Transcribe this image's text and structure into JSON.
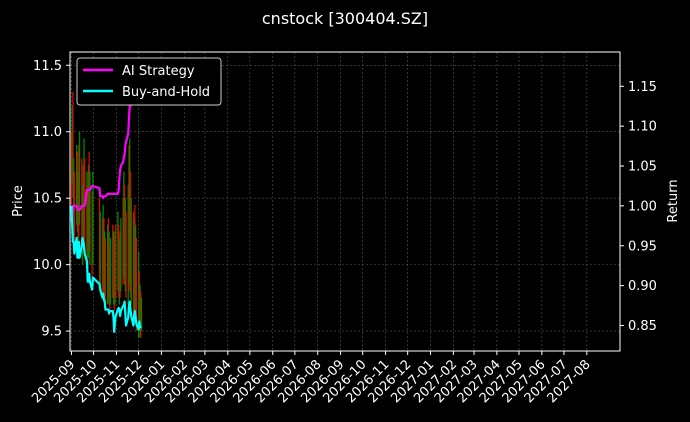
{
  "chart_data": {
    "type": "line",
    "title": "cnstock [300404.SZ]",
    "ylabel_left": "Price",
    "ylabel_right": "Return",
    "xlim": [
      "2025-08-30",
      "2027-09-15"
    ],
    "ylim_left": [
      9.35,
      11.6
    ],
    "ylim_right": [
      0.818,
      1.193
    ],
    "x_ticks": [
      "2025-09",
      "2025-10",
      "2025-11",
      "2025-12",
      "2026-01",
      "2026-02",
      "2026-03",
      "2026-04",
      "2026-05",
      "2026-06",
      "2026-07",
      "2026-08",
      "2026-09",
      "2026-10",
      "2026-11",
      "2026-12",
      "2027-01",
      "2027-02",
      "2027-03",
      "2027-04",
      "2027-05",
      "2027-06",
      "2027-07",
      "2027-08"
    ],
    "y_ticks_left": [
      9.5,
      10.0,
      10.5,
      11.0,
      11.5
    ],
    "y_ticks_right": [
      0.85,
      0.9,
      0.95,
      1.0,
      1.05,
      1.1,
      1.15
    ],
    "grid": true,
    "legend_position": "top-left",
    "colors": {
      "background": "#000000",
      "ai": "#ff00ff",
      "bh": "#00ffff",
      "up": "#008800",
      "down": "#cc1100",
      "grid": "#555555"
    },
    "price_bars": [
      {
        "x": "2025-09-01",
        "low": 10.45,
        "high": 11.0
      },
      {
        "x": "2025-09-02",
        "low": 10.6,
        "high": 11.2
      },
      {
        "x": "2025-09-03",
        "low": 10.5,
        "high": 11.3
      },
      {
        "x": "2025-09-04",
        "low": 10.2,
        "high": 10.8
      },
      {
        "x": "2025-09-05",
        "low": 10.1,
        "high": 10.7
      },
      {
        "x": "2025-09-08",
        "low": 10.3,
        "high": 10.9
      },
      {
        "x": "2025-09-09",
        "low": 10.25,
        "high": 10.85
      },
      {
        "x": "2025-09-10",
        "low": 10.1,
        "high": 10.7
      },
      {
        "x": "2025-09-11",
        "low": 10.2,
        "high": 10.9
      },
      {
        "x": "2025-09-12",
        "low": 10.3,
        "high": 11.0
      },
      {
        "x": "2025-09-15",
        "low": 10.15,
        "high": 10.8
      },
      {
        "x": "2025-09-16",
        "low": 10.0,
        "high": 10.6
      },
      {
        "x": "2025-09-17",
        "low": 10.1,
        "high": 10.75
      },
      {
        "x": "2025-09-18",
        "low": 10.2,
        "high": 10.95
      },
      {
        "x": "2025-09-19",
        "low": 10.1,
        "high": 10.8
      },
      {
        "x": "2025-09-22",
        "low": 10.0,
        "high": 10.7
      },
      {
        "x": "2025-09-23",
        "low": 9.95,
        "high": 10.6
      },
      {
        "x": "2025-09-24",
        "low": 10.05,
        "high": 10.75
      },
      {
        "x": "2025-09-25",
        "low": 10.1,
        "high": 10.85
      },
      {
        "x": "2025-09-26",
        "low": 10.0,
        "high": 10.7
      },
      {
        "x": "2025-09-29",
        "low": 9.9,
        "high": 10.55
      },
      {
        "x": "2025-09-30",
        "low": 10.0,
        "high": 10.7
      },
      {
        "x": "2025-10-09",
        "low": 9.85,
        "high": 10.5
      },
      {
        "x": "2025-10-10",
        "low": 9.8,
        "high": 10.4
      },
      {
        "x": "2025-10-13",
        "low": 9.75,
        "high": 10.35
      },
      {
        "x": "2025-10-14",
        "low": 9.8,
        "high": 10.45
      },
      {
        "x": "2025-10-15",
        "low": 9.75,
        "high": 10.35
      },
      {
        "x": "2025-10-16",
        "low": 9.7,
        "high": 10.25
      },
      {
        "x": "2025-10-17",
        "low": 9.65,
        "high": 10.2
      },
      {
        "x": "2025-10-20",
        "low": 9.7,
        "high": 10.3
      },
      {
        "x": "2025-10-21",
        "low": 9.75,
        "high": 10.35
      },
      {
        "x": "2025-10-22",
        "low": 9.7,
        "high": 10.25
      },
      {
        "x": "2025-10-23",
        "low": 9.65,
        "high": 10.15
      },
      {
        "x": "2025-10-24",
        "low": 9.7,
        "high": 10.2
      },
      {
        "x": "2025-10-27",
        "low": 9.75,
        "high": 10.3
      },
      {
        "x": "2025-10-28",
        "low": 9.7,
        "high": 10.25
      },
      {
        "x": "2025-10-29",
        "low": 9.65,
        "high": 10.2
      },
      {
        "x": "2025-10-30",
        "low": 9.7,
        "high": 10.25
      },
      {
        "x": "2025-10-31",
        "low": 9.75,
        "high": 10.3
      },
      {
        "x": "2025-11-03",
        "low": 9.8,
        "high": 10.4
      },
      {
        "x": "2025-11-04",
        "low": 9.75,
        "high": 10.3
      },
      {
        "x": "2025-11-05",
        "low": 9.7,
        "high": 10.2
      },
      {
        "x": "2025-11-06",
        "low": 9.75,
        "high": 10.25
      },
      {
        "x": "2025-11-07",
        "low": 9.8,
        "high": 10.35
      },
      {
        "x": "2025-11-10",
        "low": 9.85,
        "high": 10.5
      },
      {
        "x": "2025-11-11",
        "low": 9.9,
        "high": 10.7
      },
      {
        "x": "2025-11-12",
        "low": 9.85,
        "high": 10.6
      },
      {
        "x": "2025-11-13",
        "low": 9.8,
        "high": 10.5
      },
      {
        "x": "2025-11-14",
        "low": 9.75,
        "high": 10.4
      },
      {
        "x": "2025-11-17",
        "low": 9.7,
        "high": 10.6
      },
      {
        "x": "2025-11-18",
        "low": 9.8,
        "high": 10.9
      },
      {
        "x": "2025-11-19",
        "low": 9.85,
        "high": 10.95
      },
      {
        "x": "2025-11-20",
        "low": 9.75,
        "high": 10.7
      },
      {
        "x": "2025-11-21",
        "low": 9.7,
        "high": 10.5
      },
      {
        "x": "2025-11-24",
        "low": 9.6,
        "high": 10.4
      },
      {
        "x": "2025-11-25",
        "low": 9.55,
        "high": 10.35
      },
      {
        "x": "2025-11-26",
        "low": 9.6,
        "high": 10.45
      },
      {
        "x": "2025-11-27",
        "low": 9.55,
        "high": 10.3
      },
      {
        "x": "2025-11-28",
        "low": 9.5,
        "high": 10.2
      },
      {
        "x": "2025-12-01",
        "low": 9.45,
        "high": 10.1
      },
      {
        "x": "2025-12-02",
        "low": 9.5,
        "high": 9.95
      },
      {
        "x": "2025-12-03",
        "low": 9.45,
        "high": 9.85
      },
      {
        "x": "2025-12-04",
        "low": 9.45,
        "high": 9.8
      },
      {
        "x": "2025-12-05",
        "low": 9.5,
        "high": 9.75
      }
    ],
    "series": [
      {
        "name": "AI Strategy",
        "axis": "right",
        "points": [
          [
            "2025-09-01",
            0.98
          ],
          [
            "2025-09-03",
            1.0
          ],
          [
            "2025-09-08",
            1.0
          ],
          [
            "2025-09-10",
            0.995
          ],
          [
            "2025-09-12",
            0.995
          ],
          [
            "2025-09-15",
            1.0
          ],
          [
            "2025-09-19",
            1.0
          ],
          [
            "2025-09-22",
            1.02
          ],
          [
            "2025-09-26",
            1.02
          ],
          [
            "2025-09-29",
            1.025
          ],
          [
            "2025-09-30",
            1.025
          ],
          [
            "2025-10-09",
            1.022
          ],
          [
            "2025-10-10",
            1.012
          ],
          [
            "2025-10-13",
            1.012
          ],
          [
            "2025-10-14",
            1.01
          ],
          [
            "2025-10-15",
            1.012
          ],
          [
            "2025-10-17",
            1.012
          ],
          [
            "2025-10-20",
            1.015
          ],
          [
            "2025-10-24",
            1.015
          ],
          [
            "2025-10-27",
            1.015
          ],
          [
            "2025-10-31",
            1.015
          ],
          [
            "2025-11-03",
            1.015
          ],
          [
            "2025-11-04",
            1.02
          ],
          [
            "2025-11-05",
            1.035
          ],
          [
            "2025-11-06",
            1.045
          ],
          [
            "2025-11-07",
            1.05
          ],
          [
            "2025-11-10",
            1.055
          ],
          [
            "2025-11-11",
            1.06
          ],
          [
            "2025-11-12",
            1.065
          ],
          [
            "2025-11-13",
            1.075
          ],
          [
            "2025-11-14",
            1.08
          ],
          [
            "2025-11-17",
            1.09
          ],
          [
            "2025-11-18",
            1.11
          ],
          [
            "2025-11-19",
            1.125
          ],
          [
            "2025-11-20",
            1.125
          ],
          [
            "2025-11-21",
            1.135
          ],
          [
            "2025-11-24",
            1.135
          ],
          [
            "2025-11-25",
            1.135
          ]
        ]
      },
      {
        "name": "Buy-and-Hold",
        "axis": "right",
        "points": [
          [
            "2025-09-01",
            1.0
          ],
          [
            "2025-09-02",
            0.975
          ],
          [
            "2025-09-03",
            0.955
          ],
          [
            "2025-09-04",
            0.955
          ],
          [
            "2025-09-05",
            0.94
          ],
          [
            "2025-09-08",
            0.96
          ],
          [
            "2025-09-09",
            0.935
          ],
          [
            "2025-09-10",
            0.935
          ],
          [
            "2025-09-11",
            0.955
          ],
          [
            "2025-09-12",
            0.935
          ],
          [
            "2025-09-15",
            0.95
          ],
          [
            "2025-09-16",
            0.96
          ],
          [
            "2025-09-17",
            0.955
          ],
          [
            "2025-09-18",
            0.95
          ],
          [
            "2025-09-19",
            0.94
          ],
          [
            "2025-09-22",
            0.93
          ],
          [
            "2025-09-23",
            0.905
          ],
          [
            "2025-09-24",
            0.905
          ],
          [
            "2025-09-25",
            0.915
          ],
          [
            "2025-09-26",
            0.905
          ],
          [
            "2025-09-29",
            0.895
          ],
          [
            "2025-09-30",
            0.91
          ],
          [
            "2025-10-09",
            0.902
          ],
          [
            "2025-10-10",
            0.895
          ],
          [
            "2025-10-13",
            0.885
          ],
          [
            "2025-10-14",
            0.89
          ],
          [
            "2025-10-15",
            0.882
          ],
          [
            "2025-10-16",
            0.88
          ],
          [
            "2025-10-17",
            0.87
          ],
          [
            "2025-10-20",
            0.87
          ],
          [
            "2025-10-21",
            0.87
          ],
          [
            "2025-10-22",
            0.865
          ],
          [
            "2025-10-23",
            0.868
          ],
          [
            "2025-10-24",
            0.868
          ],
          [
            "2025-10-27",
            0.868
          ],
          [
            "2025-10-28",
            0.86
          ],
          [
            "2025-10-29",
            0.842
          ],
          [
            "2025-10-30",
            0.855
          ],
          [
            "2025-10-31",
            0.862
          ],
          [
            "2025-11-03",
            0.87
          ],
          [
            "2025-11-04",
            0.872
          ],
          [
            "2025-11-05",
            0.87
          ],
          [
            "2025-11-06",
            0.862
          ],
          [
            "2025-11-07",
            0.868
          ],
          [
            "2025-11-10",
            0.875
          ],
          [
            "2025-11-11",
            0.875
          ],
          [
            "2025-11-12",
            0.88
          ],
          [
            "2025-11-13",
            0.865
          ],
          [
            "2025-11-14",
            0.85
          ],
          [
            "2025-11-17",
            0.86
          ],
          [
            "2025-11-18",
            0.875
          ],
          [
            "2025-11-19",
            0.88
          ],
          [
            "2025-11-20",
            0.87
          ],
          [
            "2025-11-21",
            0.862
          ],
          [
            "2025-11-24",
            0.85
          ],
          [
            "2025-11-25",
            0.862
          ],
          [
            "2025-11-26",
            0.868
          ],
          [
            "2025-11-27",
            0.86
          ],
          [
            "2025-11-28",
            0.852
          ],
          [
            "2025-12-01",
            0.845
          ],
          [
            "2025-12-02",
            0.855
          ],
          [
            "2025-12-03",
            0.848
          ],
          [
            "2025-12-04",
            0.848
          ],
          [
            "2025-12-05",
            0.848
          ]
        ]
      }
    ]
  }
}
